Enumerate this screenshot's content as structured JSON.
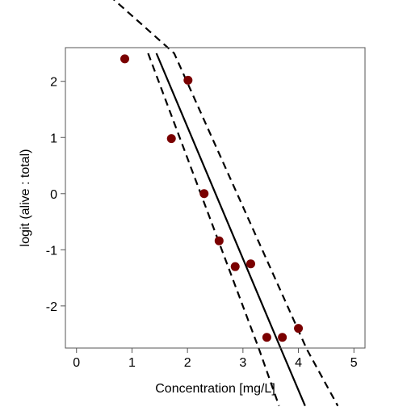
{
  "chart_data": {
    "type": "scatter",
    "title": "",
    "xlabel": "Concentration [mg/L]",
    "ylabel": "logit (alive : total)",
    "xlim": [
      -0.2,
      5.2
    ],
    "ylim": [
      -2.75,
      2.6
    ],
    "xticks": [
      0,
      1,
      2,
      3,
      4,
      5
    ],
    "yticks": [
      -2,
      -1,
      0,
      1,
      2
    ],
    "grid": false,
    "point_color": "#7a0000",
    "points": [
      {
        "x": 0.87,
        "y": 2.4
      },
      {
        "x": 1.71,
        "y": 0.98
      },
      {
        "x": 2.01,
        "y": 2.02
      },
      {
        "x": 2.3,
        "y": 0.0
      },
      {
        "x": 2.57,
        "y": -0.84
      },
      {
        "x": 2.86,
        "y": -1.3
      },
      {
        "x": 3.14,
        "y": -1.25
      },
      {
        "x": 3.43,
        "y": -2.56
      },
      {
        "x": 3.71,
        "y": -2.56
      },
      {
        "x": 4.0,
        "y": -2.4
      }
    ],
    "fit_line": [
      [
        1.44,
        2.5
      ],
      [
        3.7,
        -2.8
      ],
      [
        4.12,
        -3.78
      ]
    ],
    "ci_upper": [
      [
        0.43,
        3.67
      ],
      [
        1.76,
        2.5
      ],
      [
        4.15,
        -2.77
      ],
      [
        4.71,
        -3.78
      ]
    ],
    "ci_lower": [
      [
        1.29,
        2.5
      ],
      [
        3.29,
        -2.77
      ],
      [
        3.65,
        -3.78
      ]
    ]
  }
}
